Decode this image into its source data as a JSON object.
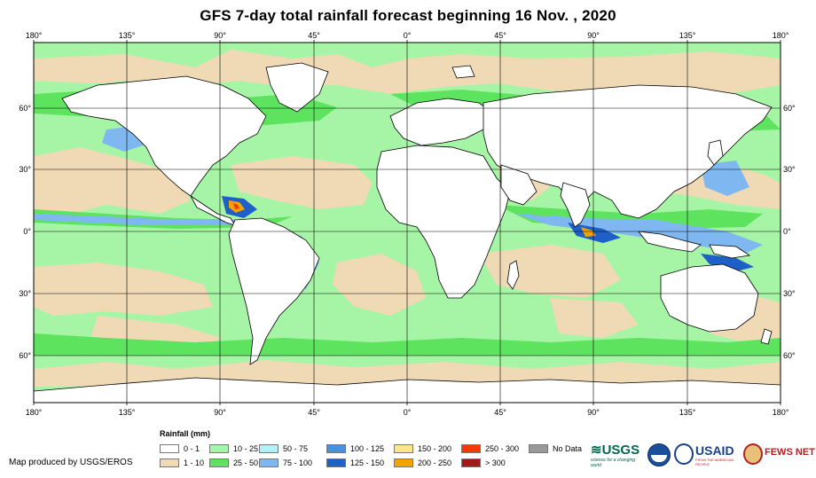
{
  "title": "GFS 7-day total rainfall forecast beginning 16 Nov. , 2020",
  "map": {
    "longitude_labels": [
      "180°",
      "135°",
      "90°",
      "45°",
      "0°",
      "45°",
      "90°",
      "135°",
      "180°"
    ],
    "latitude_labels": [
      "60°",
      "30°",
      "0°",
      "30°",
      "60°"
    ],
    "ocean_color": "#a6f5a6"
  },
  "legend": {
    "title": "Rainfall (mm)",
    "items": [
      {
        "label": "0 - 1",
        "color": "#ffffff"
      },
      {
        "label": "1 - 10",
        "color": "#f0d9b5"
      },
      {
        "label": "10 - 25",
        "color": "#a6f5a6"
      },
      {
        "label": "25 - 50",
        "color": "#5ee35e"
      },
      {
        "label": "50 - 75",
        "color": "#b3f0f7"
      },
      {
        "label": "75 - 100",
        "color": "#7fb8f0"
      },
      {
        "label": "100 - 125",
        "color": "#4a8fe0"
      },
      {
        "label": "125 - 150",
        "color": "#1f5fc8"
      },
      {
        "label": "150 - 200",
        "color": "#fde68a"
      },
      {
        "label": "200 - 250",
        "color": "#f5a300"
      },
      {
        "label": "250 - 300",
        "color": "#f03c00"
      },
      {
        "label": "> 300",
        "color": "#a31818"
      },
      {
        "label": "No Data",
        "color": "#999999"
      }
    ]
  },
  "credit": "Map produced by USGS/EROS",
  "logos": {
    "usgs": "≋USGS",
    "usgs_tagline": "science for a changing world",
    "usaid": "USAID",
    "usaid_tagline": "FROM THE AMERICAN PEOPLE",
    "fewsnet": "FEWS NET"
  }
}
